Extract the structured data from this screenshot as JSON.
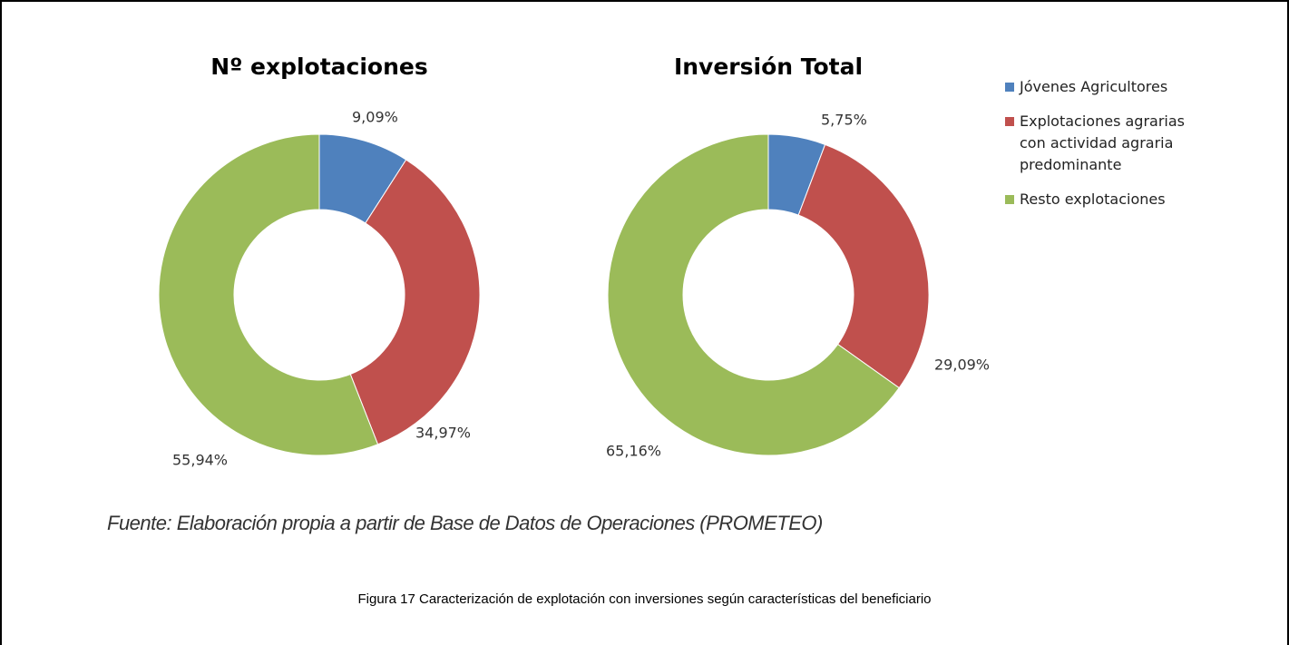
{
  "chart_data": [
    {
      "type": "pie",
      "title": "Nº explotaciones",
      "categories": [
        "Jóvenes Agricultores",
        "Explotaciones agrarias con actividad agraria predominante",
        "Resto explotaciones"
      ],
      "values": [
        9.09,
        34.97,
        55.94
      ],
      "value_labels": [
        "9,09%",
        "34,97%",
        "55,94%"
      ],
      "colors": [
        "#4f81bd",
        "#c0504d",
        "#9bbb59"
      ]
    },
    {
      "type": "pie",
      "title": "Inversión Total",
      "categories": [
        "Jóvenes Agricultores",
        "Explotaciones agrarias con actividad agraria predominante",
        "Resto explotaciones"
      ],
      "values": [
        5.75,
        29.09,
        65.16
      ],
      "value_labels": [
        "5,75%",
        "29,09%",
        "65,16%"
      ],
      "colors": [
        "#4f81bd",
        "#c0504d",
        "#9bbb59"
      ]
    }
  ],
  "source": "Fuente: Elaboración propia a partir de Base de Datos de Operaciones (PROMETEO)",
  "caption": "Figura 17 Caracterización de explotación con inversiones según características del beneficiario"
}
